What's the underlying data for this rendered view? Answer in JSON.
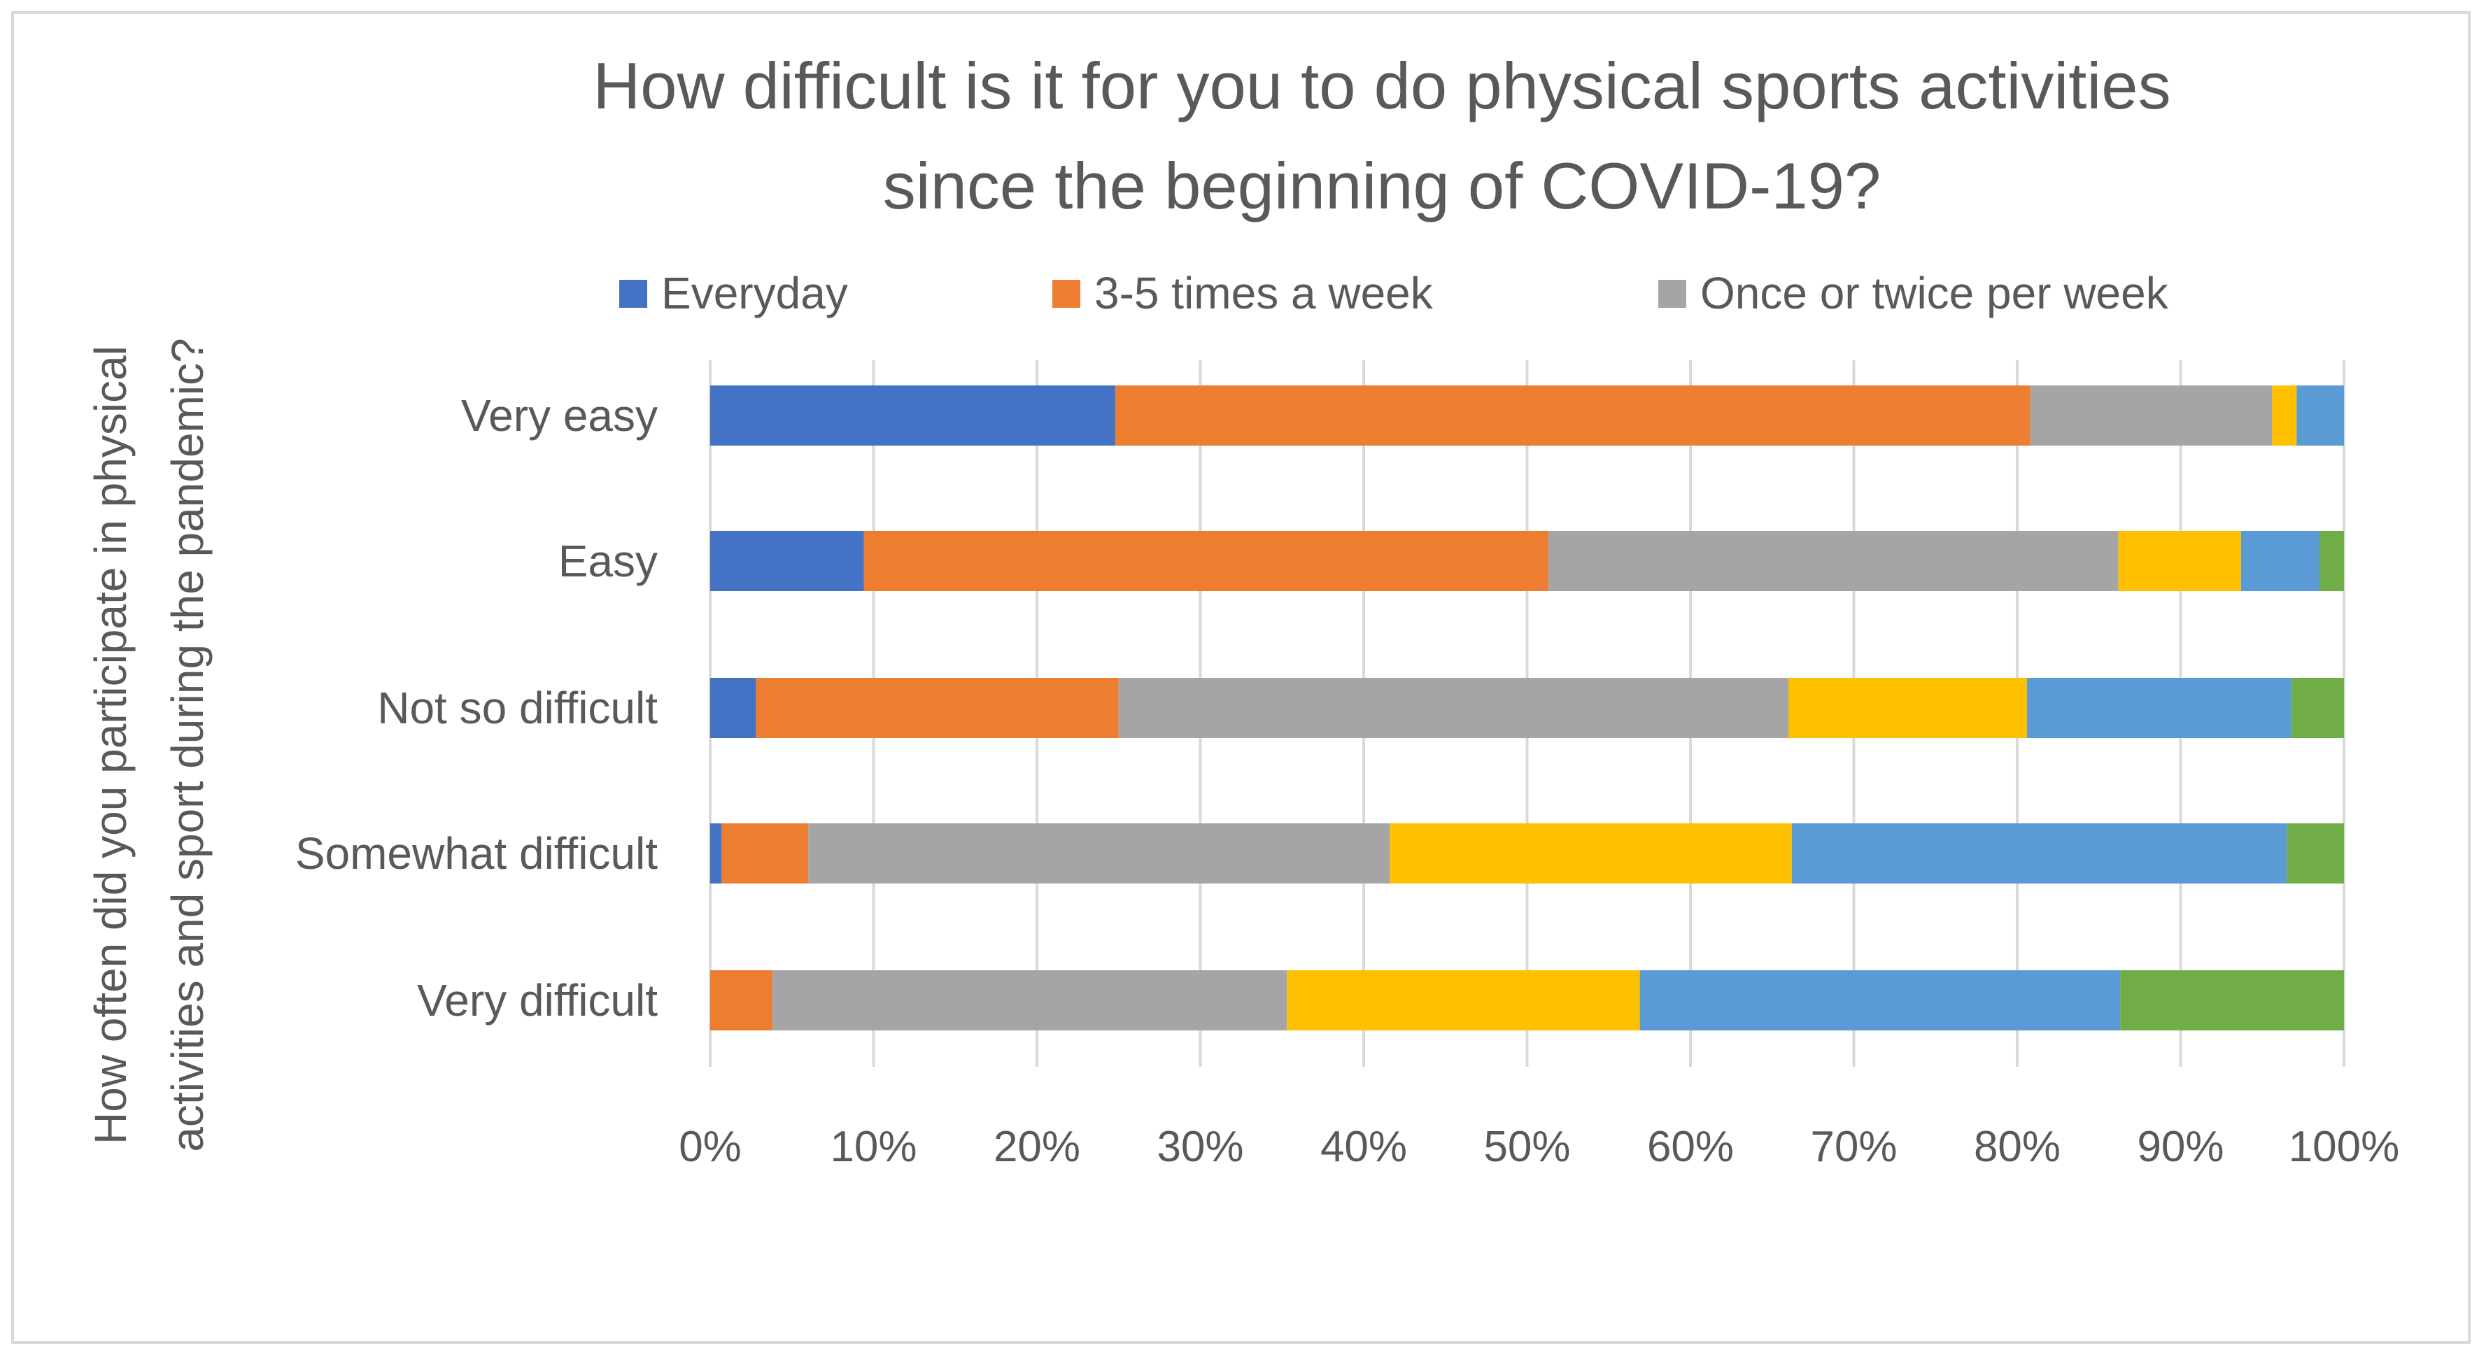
{
  "chart_data": {
    "type": "bar",
    "orientation": "horizontal",
    "stacked": "percent",
    "title": [
      "How difficult is it for you to do physical sports activities",
      "since the beginning of COVID-19?"
    ],
    "xlabel": "",
    "ylabel": [
      "How often did you participate in physical",
      "activities and sport during the pandemic?"
    ],
    "xlim": [
      0,
      100
    ],
    "xticks": [
      "0%",
      "10%",
      "20%",
      "30%",
      "40%",
      "50%",
      "60%",
      "70%",
      "80%",
      "90%",
      "100%"
    ],
    "grid": "vertical",
    "legend_position": "top",
    "categories": [
      "Very easy",
      "Easy",
      "Not so difficult",
      "Somewhat difficult",
      "Very difficult"
    ],
    "series": [
      {
        "name": "Everyday",
        "color": "#4472c4",
        "values": [
          24.8,
          9.4,
          2.8,
          0.7,
          0.0
        ],
        "in_legend": true
      },
      {
        "name": "3-5 times a week",
        "color": "#ed7d31",
        "values": [
          56.0,
          41.9,
          22.2,
          5.3,
          3.8
        ],
        "in_legend": true
      },
      {
        "name": "Once or twice per week",
        "color": "#a5a5a5",
        "values": [
          14.8,
          34.9,
          41.0,
          35.6,
          31.5
        ],
        "in_legend": true
      },
      {
        "name": "",
        "color": "#ffc000",
        "values": [
          1.5,
          7.5,
          14.6,
          24.6,
          21.6
        ],
        "in_legend": false
      },
      {
        "name": "",
        "color": "#5b9bd5",
        "values": [
          2.9,
          4.8,
          16.2,
          30.3,
          29.4
        ],
        "in_legend": false
      },
      {
        "name": "",
        "color": "#70ad47",
        "values": [
          0.0,
          1.5,
          3.2,
          3.5,
          13.7
        ],
        "in_legend": false
      }
    ]
  }
}
